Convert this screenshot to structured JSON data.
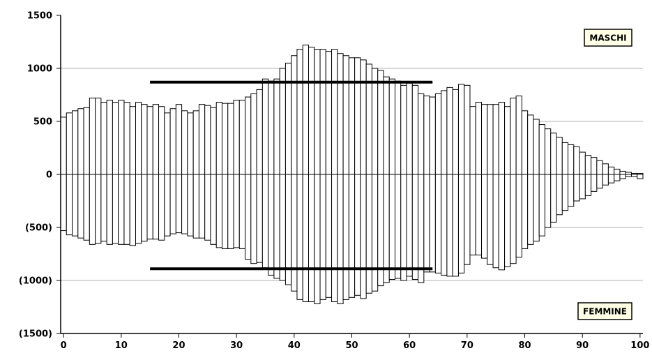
{
  "chart_data": {
    "type": "bar",
    "title": "",
    "xlabel": "",
    "ylabel": "",
    "xlim": [
      -0.5,
      100.5
    ],
    "ylim": [
      -1500,
      1500
    ],
    "grid": true,
    "x_ticks": [
      "0",
      "10",
      "20",
      "30",
      "40",
      "50",
      "60",
      "70",
      "80",
      "90",
      "100"
    ],
    "y_ticks": [
      "1500",
      "1000",
      "500",
      "0",
      "(500)",
      "(1000)",
      "(1500)"
    ],
    "series": [
      {
        "name": "MASCHI",
        "values": [
          540,
          580,
          600,
          620,
          630,
          720,
          720,
          680,
          700,
          680,
          700,
          680,
          640,
          680,
          660,
          640,
          660,
          640,
          580,
          620,
          660,
          600,
          580,
          600,
          660,
          650,
          630,
          680,
          670,
          670,
          700,
          700,
          730,
          760,
          800,
          900,
          880,
          900,
          1000,
          1050,
          1120,
          1180,
          1220,
          1200,
          1180,
          1180,
          1160,
          1180,
          1140,
          1120,
          1100,
          1100,
          1080,
          1040,
          1000,
          980,
          920,
          900,
          880,
          840,
          860,
          840,
          760,
          740,
          730,
          760,
          790,
          820,
          800,
          850,
          840,
          640,
          680,
          660,
          660,
          660,
          680,
          640,
          720,
          740,
          600,
          560,
          520,
          470,
          430,
          390,
          350,
          300,
          280,
          260,
          210,
          180,
          160,
          130,
          100,
          70,
          50,
          30,
          20,
          10,
          10
        ]
      },
      {
        "name": "FEMMINE",
        "values": [
          -530,
          -570,
          -580,
          -600,
          -620,
          -660,
          -650,
          -630,
          -660,
          -650,
          -660,
          -660,
          -670,
          -650,
          -630,
          -610,
          -610,
          -620,
          -580,
          -560,
          -550,
          -560,
          -580,
          -600,
          -600,
          -620,
          -660,
          -690,
          -700,
          -700,
          -690,
          -700,
          -800,
          -840,
          -830,
          -880,
          -950,
          -980,
          -1000,
          -1040,
          -1100,
          -1180,
          -1200,
          -1200,
          -1220,
          -1180,
          -1160,
          -1200,
          -1220,
          -1180,
          -1160,
          -1140,
          -1170,
          -1120,
          -1100,
          -1050,
          -1020,
          -990,
          -980,
          -1000,
          -960,
          -990,
          -1020,
          -920,
          -920,
          -930,
          -950,
          -960,
          -960,
          -930,
          -850,
          -760,
          -760,
          -790,
          -850,
          -880,
          -900,
          -870,
          -840,
          -780,
          -700,
          -660,
          -630,
          -580,
          -500,
          -450,
          -380,
          -340,
          -300,
          -250,
          -230,
          -200,
          -160,
          -130,
          -100,
          -80,
          -60,
          -40,
          -20,
          -20,
          -40
        ]
      }
    ],
    "lines": [
      {
        "x": [
          15,
          64
        ],
        "y": [
          870,
          870
        ]
      },
      {
        "x": [
          15,
          64
        ],
        "y": [
          -890,
          -890
        ]
      }
    ],
    "legend": [
      {
        "label": "MASCHI",
        "position": "top-right"
      },
      {
        "label": "FEMMINE",
        "position": "bottom-right"
      }
    ],
    "colors": {
      "bar_fill": "#ffffff",
      "bar_stroke": "#000000",
      "grid": "#b0b0b0",
      "legend_fill": "#ffffe6"
    }
  }
}
